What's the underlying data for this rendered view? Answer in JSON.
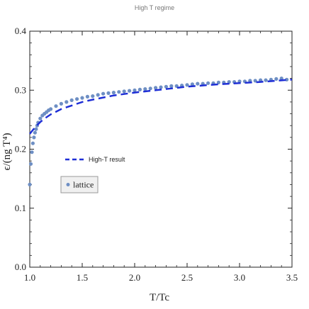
{
  "chart_data": {
    "type": "scatter",
    "title": "High T regime",
    "xlabel": "T/Tc",
    "ylabel": "ϵ/(ng T⁴)",
    "xlim": [
      1.0,
      3.5
    ],
    "ylim": [
      0.0,
      0.4
    ],
    "xticks": [
      "1.0",
      "1.5",
      "2.0",
      "2.5",
      "3.0",
      "3.5"
    ],
    "yticks": [
      "0.0",
      "0.1",
      "0.2",
      "0.3",
      "0.4"
    ],
    "grid": false,
    "legend_placement": "left-center",
    "colors": {
      "lattice": "#6e8fc4",
      "high_t": "#1f2fd6",
      "axis": "#222222",
      "legend_box": "#f0f0f0"
    },
    "series": [
      {
        "name": "High-T result",
        "kind": "line",
        "style": "dashed",
        "x": [
          1.0,
          1.05,
          1.1,
          1.15,
          1.2,
          1.3,
          1.4,
          1.5,
          1.6,
          1.8,
          2.0,
          2.2,
          2.5,
          2.8,
          3.0,
          3.2,
          3.5
        ],
        "y": [
          0.226,
          0.237,
          0.246,
          0.253,
          0.259,
          0.268,
          0.274,
          0.28,
          0.284,
          0.291,
          0.296,
          0.3,
          0.306,
          0.31,
          0.312,
          0.314,
          0.318
        ]
      },
      {
        "name": "lattice",
        "kind": "scatter",
        "x": [
          1.0,
          1.01,
          1.02,
          1.03,
          1.04,
          1.05,
          1.06,
          1.07,
          1.08,
          1.1,
          1.12,
          1.14,
          1.16,
          1.18,
          1.2,
          1.25,
          1.3,
          1.35,
          1.4,
          1.45,
          1.5,
          1.55,
          1.6,
          1.65,
          1.7,
          1.75,
          1.8,
          1.85,
          1.9,
          1.95,
          2.0,
          2.05,
          2.1,
          2.15,
          2.2,
          2.25,
          2.3,
          2.35,
          2.4,
          2.45,
          2.5,
          2.55,
          2.6,
          2.65,
          2.7,
          2.75,
          2.8,
          2.85,
          2.9,
          2.95,
          3.0,
          3.05,
          3.1,
          3.15,
          3.2,
          3.25,
          3.3,
          3.35,
          3.4,
          3.45
        ],
        "y": [
          0.14,
          0.175,
          0.195,
          0.21,
          0.22,
          0.228,
          0.234,
          0.24,
          0.245,
          0.252,
          0.257,
          0.26,
          0.263,
          0.266,
          0.268,
          0.273,
          0.277,
          0.28,
          0.283,
          0.285,
          0.287,
          0.289,
          0.29,
          0.292,
          0.294,
          0.295,
          0.296,
          0.297,
          0.298,
          0.299,
          0.3,
          0.301,
          0.302,
          0.303,
          0.304,
          0.305,
          0.306,
          0.307,
          0.307,
          0.308,
          0.309,
          0.31,
          0.311,
          0.311,
          0.312,
          0.312,
          0.313,
          0.313,
          0.314,
          0.314,
          0.315,
          0.315,
          0.316,
          0.316,
          0.317,
          0.317,
          0.318,
          0.319,
          0.32,
          0.318
        ]
      }
    ]
  }
}
